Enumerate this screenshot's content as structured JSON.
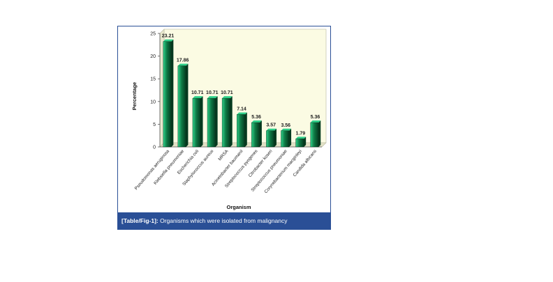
{
  "caption": {
    "label": "[Table/Fig-1]:",
    "text": " Organisms which were isolated from malignancy"
  },
  "colors": {
    "bar_light": "#2fd08a",
    "bar_mid": "#0f7a45",
    "bar_dark": "#043a1f",
    "plot_bg": "#fbfbe3",
    "caption_bg": "#2a4f96"
  },
  "chart_data": {
    "type": "bar",
    "categories": [
      "Pseudomonas aeruginosa",
      "Klebsiella pneumoniae",
      "Escherichia coli",
      "Staphylococcus aureus",
      "MRSA",
      "Acinetobacter baumanii",
      "Streptococcus pyogenes",
      "Citrobacter koseri",
      "Streptococcus pneumoniae",
      "Corynebacterium macginleyi",
      "Candida albicans"
    ],
    "values": [
      23.21,
      17.86,
      10.71,
      10.71,
      10.71,
      7.14,
      5.36,
      3.57,
      3.56,
      1.79,
      5.36
    ],
    "value_labels": [
      "23.21",
      "17.86",
      "10.71",
      "10.71",
      "10.71",
      "7.14",
      "5.36",
      "3.57",
      "3.56",
      "1.79",
      "5.36"
    ],
    "xlabel": "Organism",
    "ylabel": "Percentage",
    "ylim": [
      0,
      25
    ],
    "yticks": [
      0,
      5,
      10,
      15,
      20,
      25
    ],
    "grid": false,
    "legend": "none"
  }
}
